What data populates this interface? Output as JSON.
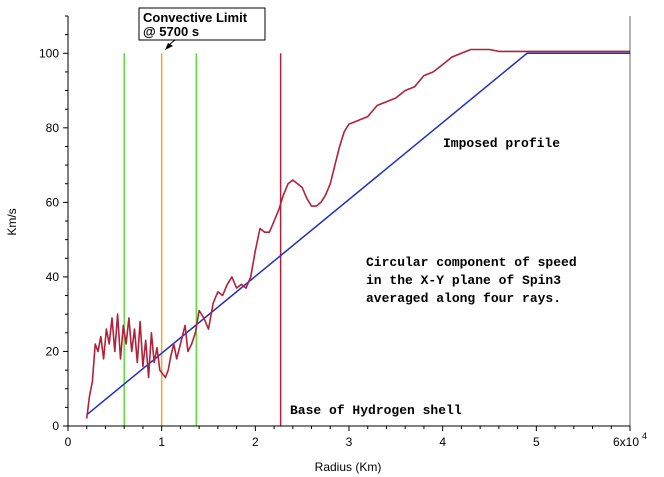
{
  "chart_data": {
    "type": "line",
    "xlabel": "Radius (Km)",
    "ylabel": "Km/s",
    "xlim": [
      0,
      60000
    ],
    "ylim": [
      0,
      110
    ],
    "x_ticks": [
      "0",
      "1",
      "2",
      "3",
      "4",
      "5",
      "6x10"
    ],
    "x_tick_exponent": "4",
    "y_ticks": [
      "0",
      "20",
      "40",
      "60",
      "80",
      "100"
    ],
    "grid": false,
    "series": [
      {
        "name": "Imposed profile",
        "color": "#1f2fbf",
        "x": [
          2000,
          49000,
          60000
        ],
        "y": [
          3,
          100,
          100
        ]
      },
      {
        "name": "Circular component",
        "color": "#b0223a",
        "x": [
          2000,
          2300,
          2600,
          2900,
          3200,
          3500,
          3800,
          4100,
          4400,
          4700,
          5000,
          5300,
          5600,
          5900,
          6200,
          6500,
          6800,
          7100,
          7400,
          7700,
          8000,
          8300,
          8600,
          8900,
          9200,
          9500,
          9800,
          10100,
          10400,
          10700,
          11000,
          11300,
          11600,
          11900,
          12200,
          12500,
          12800,
          13200,
          13600,
          14000,
          14500,
          15000,
          15500,
          16000,
          16500,
          17000,
          17500,
          18000,
          18500,
          19000,
          19500,
          20000,
          20500,
          21000,
          21500,
          22000,
          22500,
          23000,
          23500,
          24000,
          24500,
          25000,
          25500,
          26000,
          26500,
          27000,
          27500,
          28000,
          28500,
          29000,
          29500,
          30000,
          31000,
          32000,
          33000,
          34000,
          35000,
          36000,
          37000,
          38000,
          39000,
          40000,
          41000,
          42000,
          43000,
          44000,
          45000,
          46000,
          47000,
          48000,
          49000,
          50000,
          51000,
          52000,
          53000,
          54000,
          55000,
          56000,
          57000,
          58000,
          59000,
          60000
        ],
        "y": [
          2,
          8,
          12,
          22,
          20,
          24,
          18,
          26,
          22,
          29,
          20,
          30,
          18,
          27,
          22,
          29,
          20,
          26,
          17,
          28,
          16,
          23,
          13,
          25,
          17,
          21,
          15,
          14,
          13,
          15,
          19,
          22,
          18,
          21,
          24,
          27,
          20,
          22,
          25,
          31,
          29,
          26,
          33,
          36,
          35,
          38,
          40,
          37,
          38,
          37,
          40,
          47,
          53,
          52,
          52,
          55,
          58,
          62,
          65,
          66,
          65,
          64,
          61,
          59,
          59,
          60,
          62,
          65,
          70,
          75,
          79,
          81,
          82,
          83,
          86,
          87,
          88,
          90,
          91,
          94,
          95,
          97,
          99,
          100,
          101,
          101,
          101,
          100.5,
          100.5,
          100.5,
          100.5,
          100.5,
          100.5,
          100.5,
          100.5,
          100.5,
          100.5,
          100.5,
          100.5,
          100.5,
          100.5,
          100.5
        ]
      }
    ],
    "vlines": [
      {
        "x": 6000,
        "color": "#5fdc3c"
      },
      {
        "x": 10000,
        "color": "#f5a623"
      },
      {
        "x": 13700,
        "color": "#5fdc3c"
      },
      {
        "x": 22700,
        "color": "#b0223a"
      }
    ],
    "annotations": {
      "convective_line1": "Convective Limit",
      "convective_line2": "@ 5700 s",
      "imposed": "Imposed profile",
      "circular_line1": "Circular component of speed",
      "circular_line2": "in the X-Y plane of Spin3",
      "circular_line3": "averaged along four rays.",
      "base": "Base of Hydrogen shell"
    }
  }
}
